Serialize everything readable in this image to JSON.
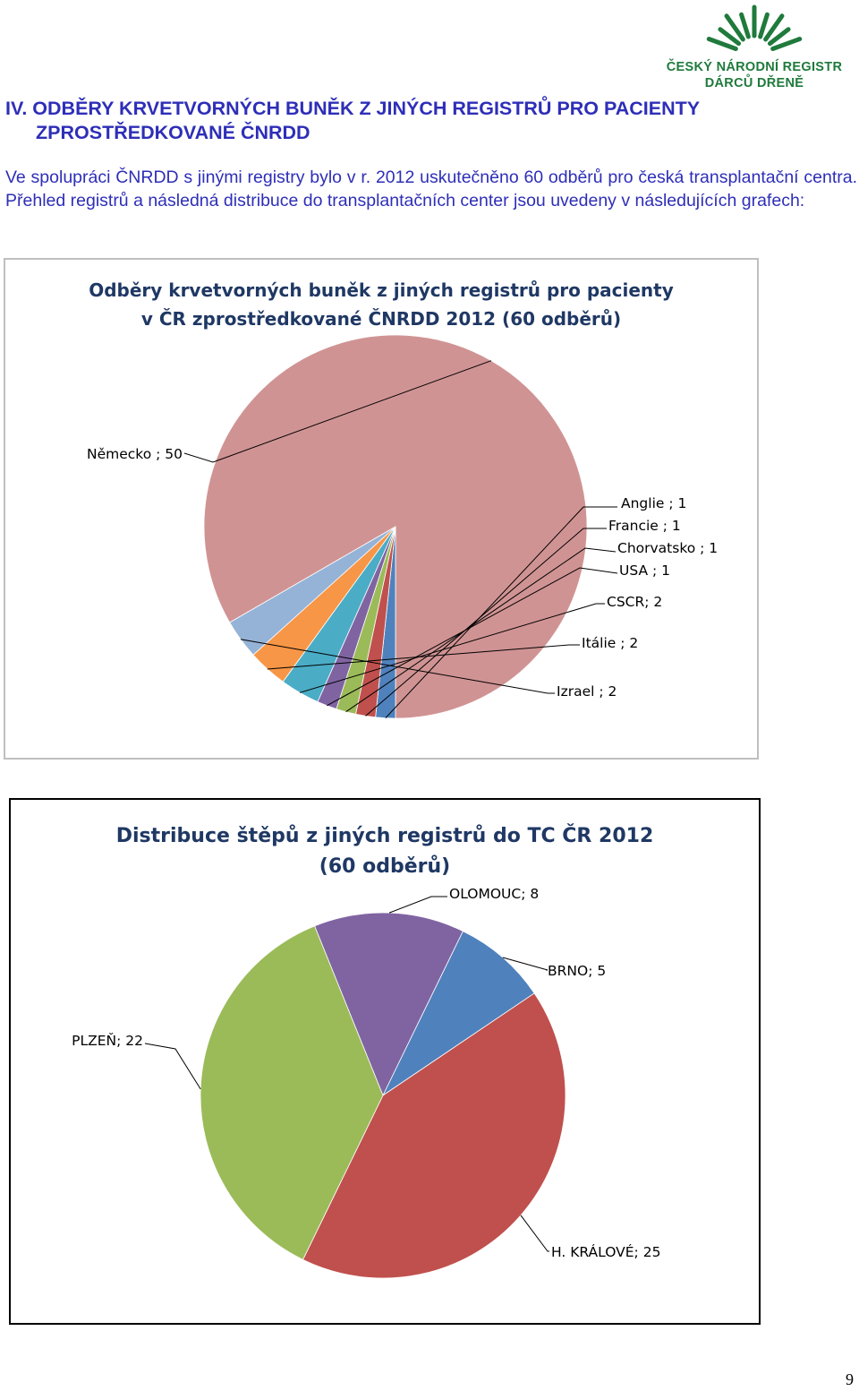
{
  "logo": {
    "line1": "ČESKÝ NÁRODNÍ REGISTR",
    "line2": "DÁRCŮ DŘENĚ",
    "color": "#1f7a3c",
    "icon": "sunrise-rays-icon"
  },
  "heading": {
    "line1": "IV. ODBĚRY KRVETVORNÝCH BUNĚK Z JINÝCH REGISTRŮ PRO PACIENTY",
    "line2": "ZPROSTŘEDKOVANÉ ČNRDD"
  },
  "intro": "Ve spolupráci ČNRDD s jinými registry bylo v r. 2012 uskutečněno 60 odběrů pro česká transplantační centra. Přehled registrů a následná distribuce do transplantačních center jsou uvedeny v následujících grafech:",
  "chart_data": [
    {
      "type": "pie",
      "title_line1": "Odběry krvetvorných buněk z jiných registrů pro pacienty",
      "title_line2": "v ČR zprostředkované ČNRDD 2012 (60 odběrů)",
      "categories": [
        "Německo",
        "Anglie",
        "Francie",
        "Chorvatsko",
        "USA",
        "CSCR",
        "Itálie",
        "Izrael"
      ],
      "values": [
        50,
        1,
        1,
        1,
        1,
        2,
        2,
        2
      ],
      "labels": [
        "Německo ; 50",
        "Anglie ; 1",
        "Francie ; 1",
        "Chorvatsko ; 1",
        "USA ; 1",
        "CSCR; 2",
        "Itálie ; 2",
        "Izrael ; 2"
      ],
      "colors": [
        "#d09393",
        "#4f81bd",
        "#c0504d",
        "#9bbb59",
        "#8064a2",
        "#4bacc6",
        "#f79646",
        "#95b3d7"
      ],
      "legend": "none"
    },
    {
      "type": "pie",
      "title_line1": "Distribuce štěpů z jiných registrů do TC ČR 2012",
      "title_line2": "(60 odběrů)",
      "categories": [
        "OLOMOUC",
        "BRNO",
        "H. KRÁLOVÉ",
        "PLZEŇ"
      ],
      "values": [
        8,
        5,
        25,
        22
      ],
      "labels": [
        "OLOMOUC; 8",
        "BRNO; 5",
        "H. KRÁLOVÉ; 25",
        "PLZEŇ; 22"
      ],
      "colors": [
        "#8064a2",
        "#4f81bd",
        "#c0504d",
        "#9bbb59"
      ],
      "legend": "none"
    }
  ],
  "page_number": "9"
}
